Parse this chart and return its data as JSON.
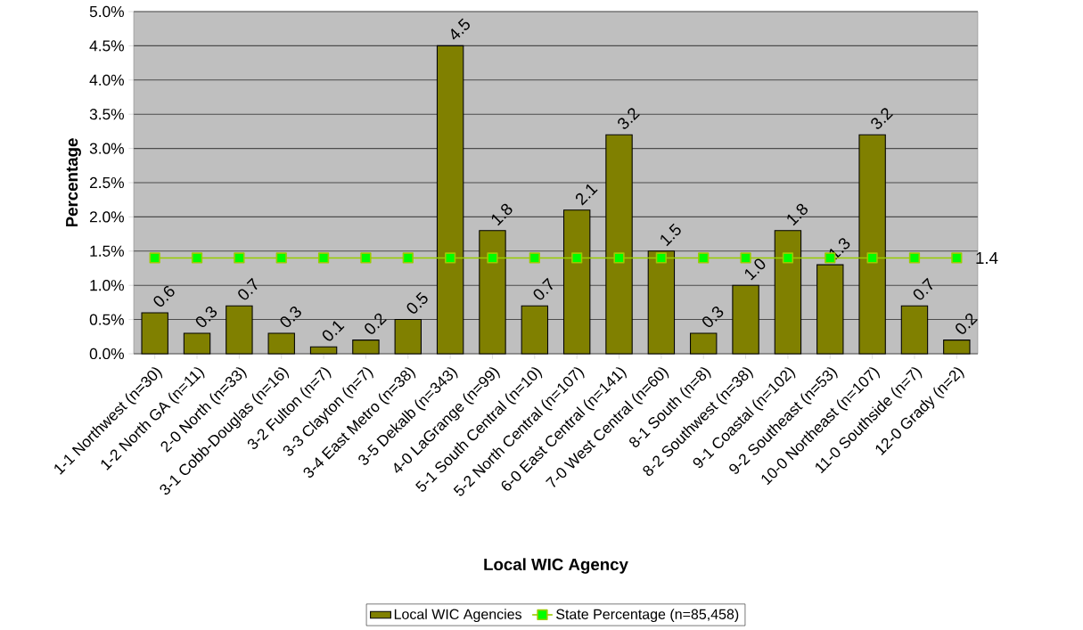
{
  "chart_data": {
    "type": "bar",
    "xlabel": "Local WIC Agency",
    "ylabel": "Percentage",
    "categories": [
      "1-1 Northwest (n=30)",
      "1-2 North GA (n=11)",
      "2-0 North (n=33)",
      "3-1 Cobb-Douglas (n=16)",
      "3-2 Fulton (n=7)",
      "3-3 Clayton (n=7)",
      "3-4 East Metro (n=38)",
      "3-5 Dekalb (n=343)",
      "4-0 LaGrange (n=99)",
      "5-1 South Central (n=10)",
      "5-2 North Central (n=107)",
      "6-0 East Central (n=141)",
      "7-0 West Central (n=60)",
      "8-1 South (n=8)",
      "8-2 Southwest (n=38)",
      "9-1 Coastal (n=102)",
      "9-2 Southeast (n=53)",
      "10-0 Northeast (n=107)",
      "11-0 Southside (n=7)",
      "12-0 Grady (n=2)"
    ],
    "series": [
      {
        "name": "Local WIC Agencies",
        "color": "#808000",
        "values": [
          0.6,
          0.3,
          0.7,
          0.3,
          0.1,
          0.2,
          0.5,
          4.5,
          1.8,
          0.7,
          2.1,
          3.2,
          1.5,
          0.3,
          1.0,
          1.8,
          1.3,
          3.2,
          0.7,
          0.2
        ],
        "value_labels": [
          "0.6",
          "0.3",
          "0.7",
          "0.3",
          "0.1",
          "0.2",
          "0.5",
          "4.5",
          "1.8",
          "0.7",
          "2.1",
          "3.2",
          "1.5",
          "0.3",
          "1.0",
          "1.8",
          "1.3",
          "3.2",
          "0.7",
          "0.2"
        ]
      },
      {
        "name": "State Percentage (n=85,458)",
        "type": "line",
        "color": "#99cc00",
        "marker": "square",
        "values": [
          1.4,
          1.4,
          1.4,
          1.4,
          1.4,
          1.4,
          1.4,
          1.4,
          1.4,
          1.4,
          1.4,
          1.4,
          1.4,
          1.4,
          1.4,
          1.4,
          1.4,
          1.4,
          1.4,
          1.4
        ],
        "value_labels": [
          null,
          null,
          null,
          null,
          null,
          null,
          null,
          null,
          null,
          null,
          null,
          null,
          null,
          null,
          null,
          null,
          null,
          null,
          null,
          "1.4"
        ]
      }
    ],
    "ylim": [
      0,
      5
    ],
    "yticks": [
      {
        "value": 0,
        "label": "0.0%"
      },
      {
        "value": 0.5,
        "label": "0.5%"
      },
      {
        "value": 1,
        "label": "1.0%"
      },
      {
        "value": 1.5,
        "label": "1.5%"
      },
      {
        "value": 2,
        "label": "2.0%"
      },
      {
        "value": 2.5,
        "label": "2.5%"
      },
      {
        "value": 3,
        "label": "3.0%"
      },
      {
        "value": 3.5,
        "label": "3.5%"
      },
      {
        "value": 4,
        "label": "4.0%"
      },
      {
        "value": 4.5,
        "label": "4.5%"
      },
      {
        "value": 5,
        "label": "5.0%"
      }
    ],
    "grid": "y",
    "legend": "bottom"
  }
}
